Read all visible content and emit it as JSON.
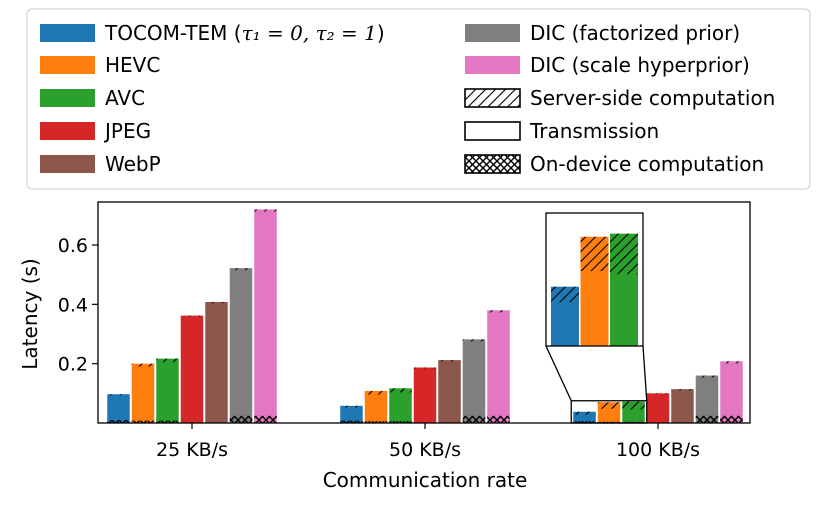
{
  "chart_data": {
    "type": "bar",
    "xlabel": "Communication rate",
    "ylabel": "Latency (s)",
    "categories": [
      "25 KB/s",
      "50 KB/s",
      "100 KB/s"
    ],
    "ylim": [
      0,
      0.745
    ],
    "yticks": [
      0.2,
      0.4,
      0.6
    ],
    "ytick_labels": [
      "0.2",
      "0.4",
      "0.6"
    ],
    "legend_placement": "top (above plot), two columns",
    "series": [
      {
        "name": "TOCOM-TEM (τ₁ = 0, τ₂ = 1)",
        "label_main": "TOCOM-TEM (",
        "label_math": "τ₁ = 0, τ₂ = 1",
        "label_close": ")",
        "color": "#1f77b4",
        "total": [
          0.097,
          0.058,
          0.038
        ],
        "server": [
          0.004,
          0.006,
          0.01
        ],
        "device": [
          0.01,
          0.008,
          0.006
        ]
      },
      {
        "name": "HEVC",
        "color": "#ff7f0e",
        "total": [
          0.2,
          0.108,
          0.07
        ],
        "server": [
          0.01,
          0.012,
          0.022
        ],
        "device": [
          0.008,
          0.006,
          0.004
        ]
      },
      {
        "name": "AVC",
        "color": "#2ca02c",
        "total": [
          0.217,
          0.117,
          0.072
        ],
        "server": [
          0.012,
          0.014,
          0.026
        ],
        "device": [
          0.008,
          0.006,
          0.004
        ]
      },
      {
        "name": "JPEG",
        "color": "#d62728",
        "total": [
          0.362,
          0.187,
          0.1
        ],
        "server": [
          0.003,
          0.003,
          0.003
        ],
        "device": [
          0,
          0,
          0
        ]
      },
      {
        "name": "WebP",
        "color": "#8c564b",
        "total": [
          0.408,
          0.212,
          0.114
        ],
        "server": [
          0.004,
          0.004,
          0.004
        ],
        "device": [
          0,
          0,
          0
        ]
      },
      {
        "name": "DIC (factorized prior)",
        "color": "#7f7f7f",
        "total": [
          0.522,
          0.282,
          0.16
        ],
        "server": [
          0.007,
          0.007,
          0.007
        ],
        "device": [
          0.024,
          0.024,
          0.024
        ]
      },
      {
        "name": "DIC (scale hyperprior)",
        "color": "#e377c2",
        "total": [
          0.72,
          0.38,
          0.208
        ],
        "server": [
          0.007,
          0.007,
          0.007
        ],
        "device": [
          0.024,
          0.024,
          0.024
        ]
      }
    ],
    "hatch_legend": [
      {
        "name": "Server-side computation",
        "hatch": "diagonal"
      },
      {
        "name": "Transmission",
        "hatch": "none"
      },
      {
        "name": "On-device computation",
        "hatch": "cross"
      }
    ],
    "zoom_inset": {
      "group": "100 KB/s",
      "series": [
        "TOCOM-TEM (τ₁ = 0, τ₂ = 1)",
        "HEVC",
        "AVC"
      ],
      "source_ylim": [
        0,
        0.075
      ]
    }
  }
}
